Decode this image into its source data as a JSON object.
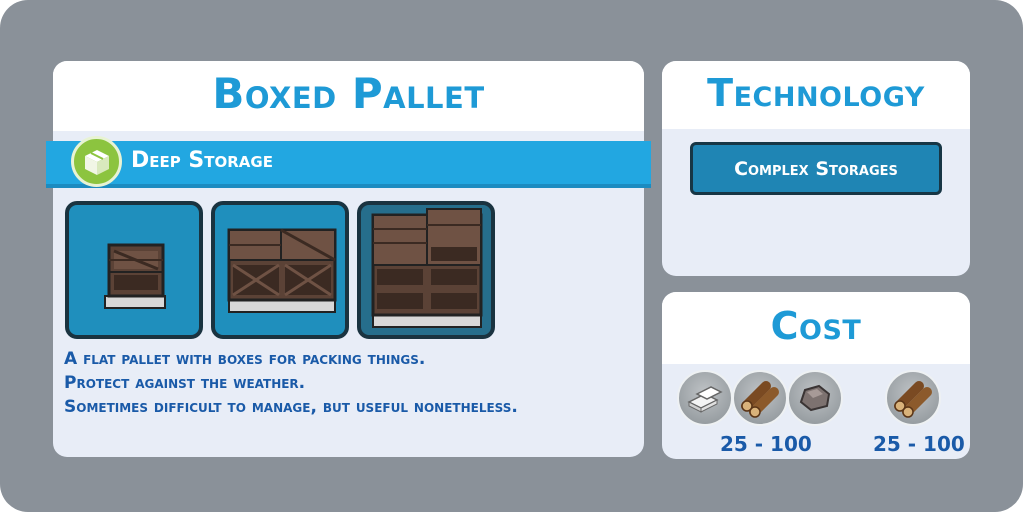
{
  "item": {
    "title": "Boxed Pallet",
    "category": "Deep Storage",
    "category_icon": "box-icon",
    "variants": [
      "small-boxed-pallet",
      "medium-boxed-pallet",
      "large-boxed-pallet"
    ],
    "selected_variant": 3,
    "description": [
      "A flat pallet with boxes for packing things.",
      "Protect against the weather.",
      "Sometimes difficult to manage, but useful nonetheless."
    ]
  },
  "technology": {
    "title": "Technology",
    "button_label": "Complex Storages"
  },
  "cost": {
    "title": "Cost",
    "groups": [
      {
        "resources": [
          "metal-bars-icon",
          "logs-icon",
          "stone-icon"
        ],
        "range": "25 - 100"
      },
      {
        "resources": [
          "logs-icon"
        ],
        "range": "25 - 100"
      }
    ]
  },
  "colors": {
    "accent": "#1e9ad6",
    "banner": "#22a7e1",
    "text": "#1a5aa8",
    "category_icon_bg": "#8cc43f"
  }
}
